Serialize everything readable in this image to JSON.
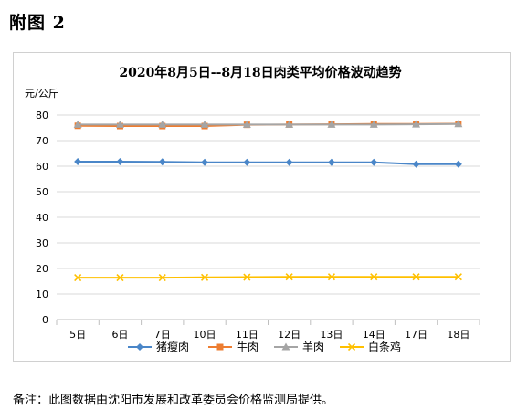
{
  "page": {
    "heading": "附图 2",
    "note": "备注：此图数据由沈阳市发展和改革委员会价格监测局提供。"
  },
  "chart_data": {
    "type": "line",
    "title": "2020年8月5日--8月18日肉类平均价格波动趋势",
    "ylabel": "元/公斤",
    "xlabel": "",
    "categories": [
      "5日",
      "6日",
      "7日",
      "10日",
      "11日",
      "12日",
      "13日",
      "14日",
      "17日",
      "18日"
    ],
    "ylim": [
      0,
      80
    ],
    "yticks": [
      0,
      10,
      20,
      30,
      40,
      50,
      60,
      70,
      80
    ],
    "grid": true,
    "legend": "bottom",
    "series": [
      {
        "name": "猪瘦肉",
        "color": "#4a86c8",
        "marker": "diamond",
        "values": [
          61.8,
          61.8,
          61.7,
          61.5,
          61.5,
          61.5,
          61.5,
          61.5,
          60.8,
          60.8
        ]
      },
      {
        "name": "牛肉",
        "color": "#ed7d31",
        "marker": "square",
        "values": [
          75.8,
          75.7,
          75.7,
          75.7,
          76.2,
          76.3,
          76.4,
          76.5,
          76.5,
          76.6
        ]
      },
      {
        "name": "羊肉",
        "color": "#a5a5a5",
        "marker": "triangle",
        "values": [
          76.3,
          76.3,
          76.3,
          76.3,
          76.3,
          76.3,
          76.3,
          76.3,
          76.4,
          76.5
        ]
      },
      {
        "name": "白条鸡",
        "color": "#ffc000",
        "marker": "x",
        "values": [
          16.4,
          16.4,
          16.4,
          16.5,
          16.6,
          16.7,
          16.7,
          16.7,
          16.7,
          16.7
        ]
      }
    ]
  }
}
